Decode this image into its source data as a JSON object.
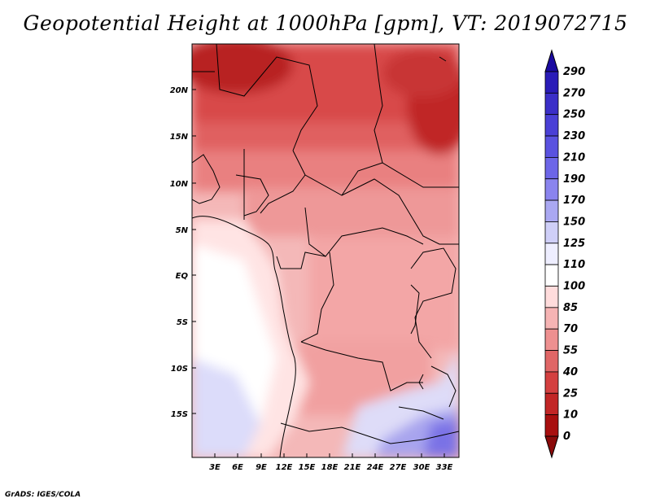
{
  "title": "Geopotential Height at 1000hPa [gpm], VT: 2019072715",
  "credit": "GrADS: IGES/COLA",
  "map": {
    "lat_labels": [
      "20N",
      "15N",
      "10N",
      "5N",
      "EQ",
      "5S",
      "10S",
      "15S"
    ],
    "lon_labels": [
      "3E",
      "6E",
      "9E",
      "12E",
      "15E",
      "18E",
      "21E",
      "24E",
      "27E",
      "30E",
      "33E"
    ]
  },
  "colorbar": {
    "levels": [
      "290",
      "270",
      "250",
      "230",
      "210",
      "190",
      "170",
      "150",
      "125",
      "110",
      "100",
      "85",
      "70",
      "55",
      "40",
      "25",
      "10",
      "0"
    ],
    "colors_top_to_bottom": [
      "#1a0aa0",
      "#2a1cb8",
      "#3b2fc8",
      "#4a40d6",
      "#5a52e0",
      "#6d66e8",
      "#8a84ee",
      "#aaa8f2",
      "#cfcff8",
      "#eeeeff",
      "#ffffff",
      "#ffdcdc",
      "#f6b4b4",
      "#ee9090",
      "#e06666",
      "#d44040",
      "#c22626",
      "#a80f0f",
      "#8a0a0a"
    ]
  }
}
